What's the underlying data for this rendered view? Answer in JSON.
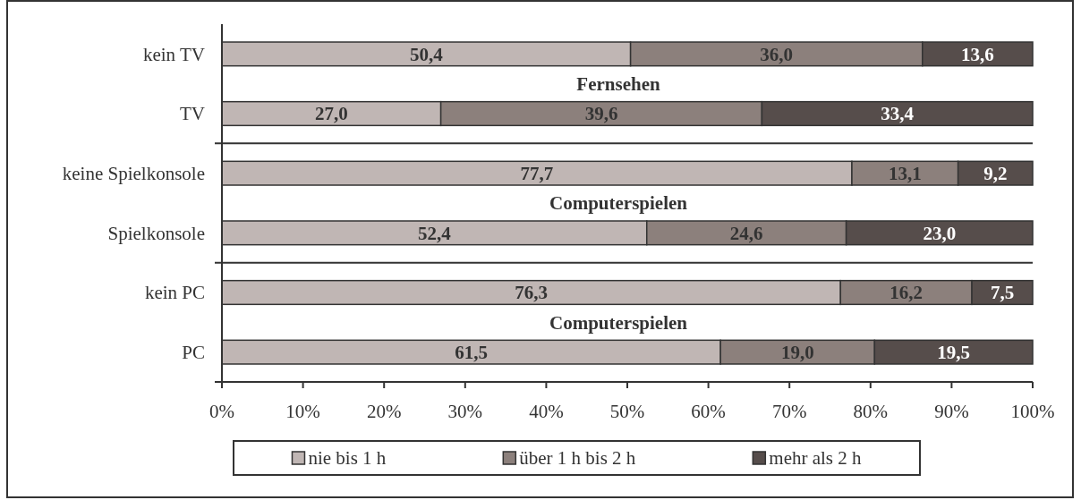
{
  "chart_data": [
    {
      "type": "bar",
      "orientation": "horizontal",
      "stacked": true,
      "categories": [
        "kein TV",
        "TV"
      ],
      "series": [
        {
          "color": "#c0b6b4",
          "values": [
            50.4,
            27.0
          ],
          "value_labels": [
            "50,4",
            "27,0"
          ]
        },
        {
          "color": "#8c807c",
          "values": [
            36.0,
            39.6
          ],
          "value_labels": [
            "36,0",
            "39,6"
          ]
        },
        {
          "color": "#564d4b",
          "values": [
            13.6,
            33.4
          ],
          "value_labels": [
            "13,6",
            "33,4"
          ]
        }
      ],
      "annotations": [
        "Fernsehen"
      ],
      "xlim": [
        0,
        100
      ],
      "tick_labels": "y"
    },
    {
      "type": "bar",
      "orientation": "horizontal",
      "stacked": true,
      "categories": [
        "keine Spielkonsole",
        "Spielkonsole"
      ],
      "series": [
        {
          "color": "#c0b6b4",
          "values": [
            77.7,
            52.4
          ],
          "value_labels": [
            "77,7",
            "52,4"
          ]
        },
        {
          "color": "#8c807c",
          "values": [
            13.1,
            24.6
          ],
          "value_labels": [
            "13,1",
            "24,6"
          ]
        },
        {
          "color": "#564d4b",
          "values": [
            9.2,
            23.0
          ],
          "value_labels": [
            "9,2",
            "23,0"
          ]
        }
      ],
      "annotations": [
        "Computerspielen"
      ],
      "xlim": [
        0,
        100
      ],
      "tick_labels": "y"
    },
    {
      "type": "bar",
      "orientation": "horizontal",
      "stacked": true,
      "categories": [
        "kein PC",
        "PC"
      ],
      "series": [
        {
          "name": "nie bis 1 h",
          "color": "#c0b6b4",
          "values": [
            76.3,
            61.5
          ],
          "value_labels": [
            "76,3",
            "61,5"
          ]
        },
        {
          "name": "über 1 h bis 2 h",
          "color": "#8c807c",
          "values": [
            16.2,
            19.0
          ],
          "value_labels": [
            "16,2",
            "19,0"
          ]
        },
        {
          "name": "mehr als 2 h",
          "color": "#564d4b",
          "values": [
            7.5,
            19.5
          ],
          "value_labels": [
            "7,5",
            "19,5"
          ]
        }
      ],
      "annotations": [
        "Computerspielen"
      ],
      "xlim": [
        0,
        100
      ],
      "xticks": [
        {
          "value": 0,
          "label": "0%"
        },
        {
          "value": 10,
          "label": "10%"
        },
        {
          "value": 20,
          "label": "20%"
        },
        {
          "value": 30,
          "label": "30%"
        },
        {
          "value": 40,
          "label": "40%"
        },
        {
          "value": 50,
          "label": "50%"
        },
        {
          "value": 60,
          "label": "60%"
        },
        {
          "value": 70,
          "label": "70%"
        },
        {
          "value": 80,
          "label": "80%"
        },
        {
          "value": 90,
          "label": "90%"
        },
        {
          "value": 100,
          "label": "100%"
        }
      ],
      "legend": "bottom"
    }
  ]
}
